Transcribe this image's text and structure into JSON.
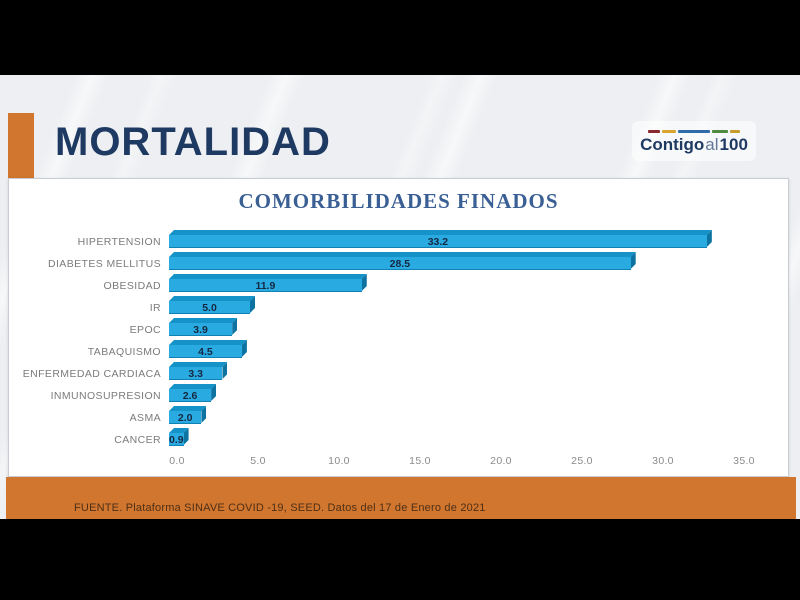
{
  "slide": {
    "title": "MORTALIDAD"
  },
  "logo": {
    "word1": "Contigo",
    "word2": "al",
    "word3": "100",
    "stripe_colors": [
      "#8a2a2e",
      "#d9a52f",
      "#2e6ba8",
      "#4e8c3f",
      "#c79c2a"
    ],
    "stripe_widths": [
      12,
      14,
      32,
      16,
      10
    ]
  },
  "chart_data": {
    "type": "bar",
    "orientation": "horizontal",
    "title": "COMORBILIDADES FINADOS",
    "categories": [
      "HIPERTENSION",
      "DIABETES MELLITUS",
      "OBESIDAD",
      "IR",
      "EPOC",
      "TABAQUISMO",
      "ENFERMEDAD CARDIACA",
      "INMUNOSUPRESION",
      "ASMA",
      "CANCER"
    ],
    "values": [
      33.2,
      28.5,
      11.9,
      5.0,
      3.9,
      4.5,
      3.3,
      2.6,
      2.0,
      0.9
    ],
    "value_labels": [
      "33.2",
      "28.5",
      "11.9",
      "5.0",
      "3.9",
      "4.5",
      "3.3",
      "2.6",
      "2.0",
      "0.9"
    ],
    "x_ticks": [
      "0.0",
      "5.0",
      "10.0",
      "15.0",
      "20.0",
      "25.0",
      "30.0",
      "35.0"
    ],
    "xlim": [
      0,
      35
    ],
    "grid": false,
    "legend": false,
    "bar_color": "#29abe2",
    "bar_top_color": "#1593c9",
    "bar_side_color": "#0d74a2",
    "category_label_color": "#7b7b7b",
    "value_label_color": "#162740",
    "title_color": "#3a5f94"
  },
  "footer": {
    "text": "FUENTE. Plataforma SINAVE COVID -19, SEED. Datos del 17 de Enero de 2021"
  },
  "colors": {
    "accent_orange": "#d0762e",
    "title_navy": "#1e3a63",
    "slide_bg": "#edeff2",
    "letterbox": "#000000"
  }
}
